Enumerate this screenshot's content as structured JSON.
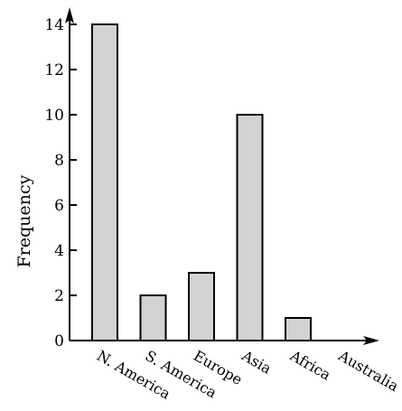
{
  "chart_data": {
    "type": "bar",
    "title": "",
    "xlabel": "",
    "ylabel": "Frequency",
    "categories": [
      "N. America",
      "S. America",
      "Europe",
      "Asia",
      "Africa",
      "Australia"
    ],
    "values": [
      14,
      2,
      3,
      10,
      1,
      0
    ],
    "ylim": [
      0,
      14
    ],
    "yticks": [
      0,
      2,
      4,
      6,
      8,
      10,
      12,
      14
    ],
    "grid": false,
    "legend": "none",
    "bar_color": "#d3d3d3",
    "edge_color": "#000000"
  }
}
